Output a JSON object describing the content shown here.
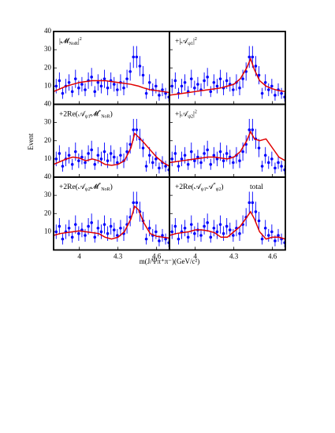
{
  "ylabel": "Event",
  "xlabel": "m(J/Ψπ⁺π⁻)(GeV/c²)",
  "chart_data": [
    {
      "type": "scatter",
      "label": [
        [
          "|𝓜",
          ""
        ],
        [
          "NoR",
          "sub"
        ],
        [
          "|",
          ""
        ],
        [
          "2",
          "sup"
        ]
      ],
      "xlim": [
        3.8,
        4.7
      ],
      "xticks": [
        4.0,
        4.3,
        4.6
      ],
      "ylim": [
        0,
        40
      ],
      "yticks": [
        10,
        20,
        30,
        40
      ],
      "x": [
        3.82,
        3.845,
        3.87,
        3.895,
        3.92,
        3.945,
        3.97,
        3.995,
        4.02,
        4.045,
        4.07,
        4.095,
        4.12,
        4.145,
        4.17,
        4.195,
        4.22,
        4.245,
        4.27,
        4.295,
        4.32,
        4.345,
        4.37,
        4.395,
        4.42,
        4.445,
        4.47,
        4.495,
        4.52,
        4.545,
        4.57,
        4.595,
        4.62,
        4.645,
        4.67,
        4.695
      ],
      "values": [
        10,
        13,
        6,
        10,
        12,
        7,
        14,
        9,
        11,
        8,
        13,
        15,
        7,
        12,
        10,
        14,
        9,
        13,
        11,
        8,
        12,
        9,
        14,
        18,
        26,
        26,
        21,
        16,
        6,
        12,
        8,
        10,
        5,
        8,
        6,
        4
      ],
      "errors": [
        4,
        4.5,
        3,
        4,
        4.5,
        3,
        5,
        4,
        4,
        3.5,
        4.5,
        5,
        3,
        4.5,
        4,
        5,
        4,
        4.5,
        4,
        3.5,
        4.5,
        4,
        5,
        5,
        6,
        6,
        5.5,
        5,
        3,
        4.5,
        3.5,
        4,
        3,
        3.5,
        3,
        2.5
      ],
      "color": "#0000ff",
      "curve_color": "#e00000",
      "curve_x": [
        3.8,
        3.85,
        3.9,
        3.95,
        4.0,
        4.05,
        4.1,
        4.15,
        4.2,
        4.25,
        4.3,
        4.35,
        4.4,
        4.43,
        4.46,
        4.5,
        4.55,
        4.6,
        4.65,
        4.7
      ],
      "curve": [
        7,
        8.5,
        10,
        11,
        12,
        12.5,
        13,
        13,
        13,
        12.5,
        12,
        11.5,
        11,
        10.5,
        10,
        9,
        8,
        7.5,
        7,
        6.5
      ]
    },
    {
      "type": "scatter",
      "label": [
        [
          "+|𝒜",
          ""
        ],
        [
          "ψ1",
          "sub"
        ],
        [
          "|",
          ""
        ],
        [
          "2",
          "sup"
        ]
      ],
      "xlim": [
        3.8,
        4.7
      ],
      "xticks": [
        4.0,
        4.3,
        4.6
      ],
      "ylim": [
        0,
        40
      ],
      "yticks": [
        10,
        20,
        30,
        40
      ],
      "x": [
        3.82,
        3.845,
        3.87,
        3.895,
        3.92,
        3.945,
        3.97,
        3.995,
        4.02,
        4.045,
        4.07,
        4.095,
        4.12,
        4.145,
        4.17,
        4.195,
        4.22,
        4.245,
        4.27,
        4.295,
        4.32,
        4.345,
        4.37,
        4.395,
        4.42,
        4.445,
        4.47,
        4.495,
        4.52,
        4.545,
        4.57,
        4.595,
        4.62,
        4.645,
        4.67,
        4.695
      ],
      "values": [
        10,
        13,
        6,
        10,
        12,
        7,
        14,
        9,
        11,
        8,
        13,
        15,
        7,
        12,
        10,
        14,
        9,
        13,
        11,
        8,
        12,
        9,
        14,
        18,
        26,
        26,
        21,
        16,
        6,
        12,
        8,
        10,
        5,
        8,
        6,
        4
      ],
      "errors": [
        4,
        4.5,
        3,
        4,
        4.5,
        3,
        5,
        4,
        4,
        3.5,
        4.5,
        5,
        3,
        4.5,
        4,
        5,
        4,
        4.5,
        4,
        3.5,
        4.5,
        4,
        5,
        5,
        6,
        6,
        5.5,
        5,
        3,
        4.5,
        3.5,
        4,
        3,
        3.5,
        3,
        2.5
      ],
      "color": "#0000ff",
      "curve_color": "#e00000",
      "curve_x": [
        3.8,
        3.85,
        3.9,
        3.95,
        4.0,
        4.05,
        4.1,
        4.15,
        4.2,
        4.25,
        4.3,
        4.35,
        4.4,
        4.43,
        4.46,
        4.5,
        4.55,
        4.6,
        4.65,
        4.7
      ],
      "curve": [
        5,
        5.5,
        6,
        6.5,
        7,
        7.5,
        8,
        8.5,
        9,
        10,
        11,
        14,
        20,
        25,
        19,
        13,
        10,
        8.5,
        7.5,
        7
      ]
    },
    {
      "type": "scatter",
      "label": [
        [
          "+2Re(𝒜",
          ""
        ],
        [
          "ψ1",
          "sub"
        ],
        [
          "𝓜",
          ""
        ],
        [
          "*",
          "sup"
        ],
        [
          "NoR",
          "sub"
        ],
        [
          ")",
          ""
        ]
      ],
      "xlim": [
        3.8,
        4.7
      ],
      "xticks": [
        4.0,
        4.3,
        4.6
      ],
      "ylim": [
        0,
        40
      ],
      "yticks": [
        10,
        20,
        30,
        40
      ],
      "x": [
        3.82,
        3.845,
        3.87,
        3.895,
        3.92,
        3.945,
        3.97,
        3.995,
        4.02,
        4.045,
        4.07,
        4.095,
        4.12,
        4.145,
        4.17,
        4.195,
        4.22,
        4.245,
        4.27,
        4.295,
        4.32,
        4.345,
        4.37,
        4.395,
        4.42,
        4.445,
        4.47,
        4.495,
        4.52,
        4.545,
        4.57,
        4.595,
        4.62,
        4.645,
        4.67,
        4.695
      ],
      "values": [
        10,
        13,
        6,
        10,
        12,
        7,
        14,
        9,
        11,
        8,
        13,
        15,
        7,
        12,
        10,
        14,
        9,
        13,
        11,
        8,
        12,
        9,
        14,
        18,
        26,
        26,
        21,
        16,
        6,
        12,
        8,
        10,
        5,
        8,
        6,
        4
      ],
      "errors": [
        4,
        4.5,
        3,
        4,
        4.5,
        3,
        5,
        4,
        4,
        3.5,
        4.5,
        5,
        3,
        4.5,
        4,
        5,
        4,
        4.5,
        4,
        3.5,
        4.5,
        4,
        5,
        5,
        6,
        6,
        5.5,
        5,
        3,
        4.5,
        3.5,
        4,
        3,
        3.5,
        3,
        2.5
      ],
      "color": "#0000ff",
      "curve_color": "#e00000",
      "curve_x": [
        3.8,
        3.85,
        3.9,
        3.95,
        4.0,
        4.05,
        4.1,
        4.15,
        4.2,
        4.25,
        4.3,
        4.35,
        4.4,
        4.43,
        4.46,
        4.5,
        4.55,
        4.6,
        4.65,
        4.7
      ],
      "curve": [
        7,
        8.5,
        10,
        11,
        10.5,
        9,
        10,
        9,
        7,
        6.5,
        7,
        9,
        16,
        24,
        22,
        19,
        15,
        11,
        8,
        6
      ]
    },
    {
      "type": "scatter",
      "label": [
        [
          "+|𝒜",
          ""
        ],
        [
          "ψ2",
          "sub"
        ],
        [
          "|",
          ""
        ],
        [
          "2",
          "sup"
        ]
      ],
      "xlim": [
        3.8,
        4.7
      ],
      "xticks": [
        4.0,
        4.3,
        4.6
      ],
      "ylim": [
        0,
        40
      ],
      "yticks": [
        10,
        20,
        30,
        40
      ],
      "x": [
        3.82,
        3.845,
        3.87,
        3.895,
        3.92,
        3.945,
        3.97,
        3.995,
        4.02,
        4.045,
        4.07,
        4.095,
        4.12,
        4.145,
        4.17,
        4.195,
        4.22,
        4.245,
        4.27,
        4.295,
        4.32,
        4.345,
        4.37,
        4.395,
        4.42,
        4.445,
        4.47,
        4.495,
        4.52,
        4.545,
        4.57,
        4.595,
        4.62,
        4.645,
        4.67,
        4.695
      ],
      "values": [
        10,
        13,
        6,
        10,
        12,
        7,
        14,
        9,
        11,
        8,
        13,
        15,
        7,
        12,
        10,
        14,
        9,
        13,
        11,
        8,
        12,
        9,
        14,
        18,
        26,
        26,
        21,
        16,
        6,
        12,
        8,
        10,
        5,
        8,
        6,
        4
      ],
      "errors": [
        4,
        4.5,
        3,
        4,
        4.5,
        3,
        5,
        4,
        4,
        3.5,
        4.5,
        5,
        3,
        4.5,
        4,
        5,
        4,
        4.5,
        4,
        3.5,
        4.5,
        4,
        5,
        5,
        6,
        6,
        5.5,
        5,
        3,
        4.5,
        3.5,
        4,
        3,
        3.5,
        3,
        2.5
      ],
      "color": "#0000ff",
      "curve_color": "#e00000",
      "curve_x": [
        3.8,
        3.85,
        3.9,
        3.95,
        4.0,
        4.05,
        4.1,
        4.15,
        4.2,
        4.25,
        4.3,
        4.35,
        4.4,
        4.43,
        4.46,
        4.5,
        4.55,
        4.6,
        4.65,
        4.7
      ],
      "curve": [
        8,
        8.5,
        9,
        9.5,
        10,
        10.5,
        11,
        11,
        10.5,
        10,
        11,
        14,
        20,
        25,
        21,
        20,
        21,
        16,
        11,
        9
      ]
    },
    {
      "type": "scatter",
      "label": [
        [
          "+2Re(𝒜",
          ""
        ],
        [
          "ψ2",
          "sub"
        ],
        [
          "𝓜",
          ""
        ],
        [
          "*",
          "sup"
        ],
        [
          "NoR",
          "sub"
        ],
        [
          ")",
          ""
        ]
      ],
      "xlim": [
        3.8,
        4.7
      ],
      "xticks": [
        4.0,
        4.3,
        4.6
      ],
      "ylim": [
        0,
        40
      ],
      "yticks": [
        10,
        20,
        30,
        40
      ],
      "x": [
        3.82,
        3.845,
        3.87,
        3.895,
        3.92,
        3.945,
        3.97,
        3.995,
        4.02,
        4.045,
        4.07,
        4.095,
        4.12,
        4.145,
        4.17,
        4.195,
        4.22,
        4.245,
        4.27,
        4.295,
        4.32,
        4.345,
        4.37,
        4.395,
        4.42,
        4.445,
        4.47,
        4.495,
        4.52,
        4.545,
        4.57,
        4.595,
        4.62,
        4.645,
        4.67,
        4.695
      ],
      "values": [
        10,
        13,
        6,
        10,
        12,
        7,
        14,
        9,
        11,
        8,
        13,
        15,
        7,
        12,
        10,
        14,
        9,
        13,
        11,
        8,
        12,
        9,
        14,
        18,
        26,
        26,
        21,
        16,
        6,
        12,
        8,
        10,
        5,
        8,
        6,
        4
      ],
      "errors": [
        4,
        4.5,
        3,
        4,
        4.5,
        3,
        5,
        4,
        4,
        3.5,
        4.5,
        5,
        3,
        4.5,
        4,
        5,
        4,
        4.5,
        4,
        3.5,
        4.5,
        4,
        5,
        5,
        6,
        6,
        5.5,
        5,
        3,
        4.5,
        3.5,
        4,
        3,
        3.5,
        3,
        2.5
      ],
      "color": "#0000ff",
      "curve_color": "#e00000",
      "curve_x": [
        3.8,
        3.85,
        3.9,
        3.95,
        4.0,
        4.05,
        4.1,
        4.15,
        4.2,
        4.25,
        4.3,
        4.35,
        4.4,
        4.43,
        4.46,
        4.5,
        4.55,
        4.6,
        4.65,
        4.7
      ],
      "curve": [
        8,
        9,
        9.5,
        10,
        10.5,
        10,
        9.5,
        9,
        7,
        6,
        7,
        10,
        17,
        24,
        22,
        15,
        9,
        7.5,
        7,
        6.5
      ]
    },
    {
      "type": "scatter",
      "label": [
        [
          "+2Re(𝒜",
          ""
        ],
        [
          "ψ1",
          "sub"
        ],
        [
          "𝒜",
          ""
        ],
        [
          "*",
          "sup"
        ],
        [
          "ψ2",
          "sub"
        ],
        [
          ")",
          ""
        ]
      ],
      "annotation": "total",
      "xlim": [
        3.8,
        4.7
      ],
      "xticks": [
        4.0,
        4.3,
        4.6
      ],
      "ylim": [
        0,
        40
      ],
      "yticks": [
        10,
        20,
        30,
        40
      ],
      "x": [
        3.82,
        3.845,
        3.87,
        3.895,
        3.92,
        3.945,
        3.97,
        3.995,
        4.02,
        4.045,
        4.07,
        4.095,
        4.12,
        4.145,
        4.17,
        4.195,
        4.22,
        4.245,
        4.27,
        4.295,
        4.32,
        4.345,
        4.37,
        4.395,
        4.42,
        4.445,
        4.47,
        4.495,
        4.52,
        4.545,
        4.57,
        4.595,
        4.62,
        4.645,
        4.67,
        4.695
      ],
      "values": [
        10,
        13,
        6,
        10,
        12,
        7,
        14,
        9,
        11,
        8,
        13,
        15,
        7,
        12,
        10,
        14,
        9,
        13,
        11,
        8,
        12,
        9,
        14,
        18,
        26,
        26,
        21,
        16,
        6,
        12,
        8,
        10,
        5,
        8,
        6,
        4
      ],
      "errors": [
        4,
        4.5,
        3,
        4,
        4.5,
        3,
        5,
        4,
        4,
        3.5,
        4.5,
        5,
        3,
        4.5,
        4,
        5,
        4,
        4.5,
        4,
        3.5,
        4.5,
        4,
        5,
        5,
        6,
        6,
        5.5,
        5,
        3,
        4.5,
        3.5,
        4,
        3,
        3.5,
        3,
        2.5
      ],
      "color": "#0000ff",
      "curve_color": "#e00000",
      "curve_x": [
        3.8,
        3.85,
        3.9,
        3.95,
        4.0,
        4.05,
        4.1,
        4.15,
        4.2,
        4.25,
        4.3,
        4.35,
        4.4,
        4.43,
        4.46,
        4.5,
        4.55,
        4.6,
        4.65,
        4.7
      ],
      "curve": [
        8,
        9,
        9.5,
        10,
        11,
        11,
        10.5,
        9.5,
        7,
        7,
        10,
        13,
        18,
        21,
        17,
        10,
        6,
        7,
        7,
        6
      ]
    }
  ]
}
